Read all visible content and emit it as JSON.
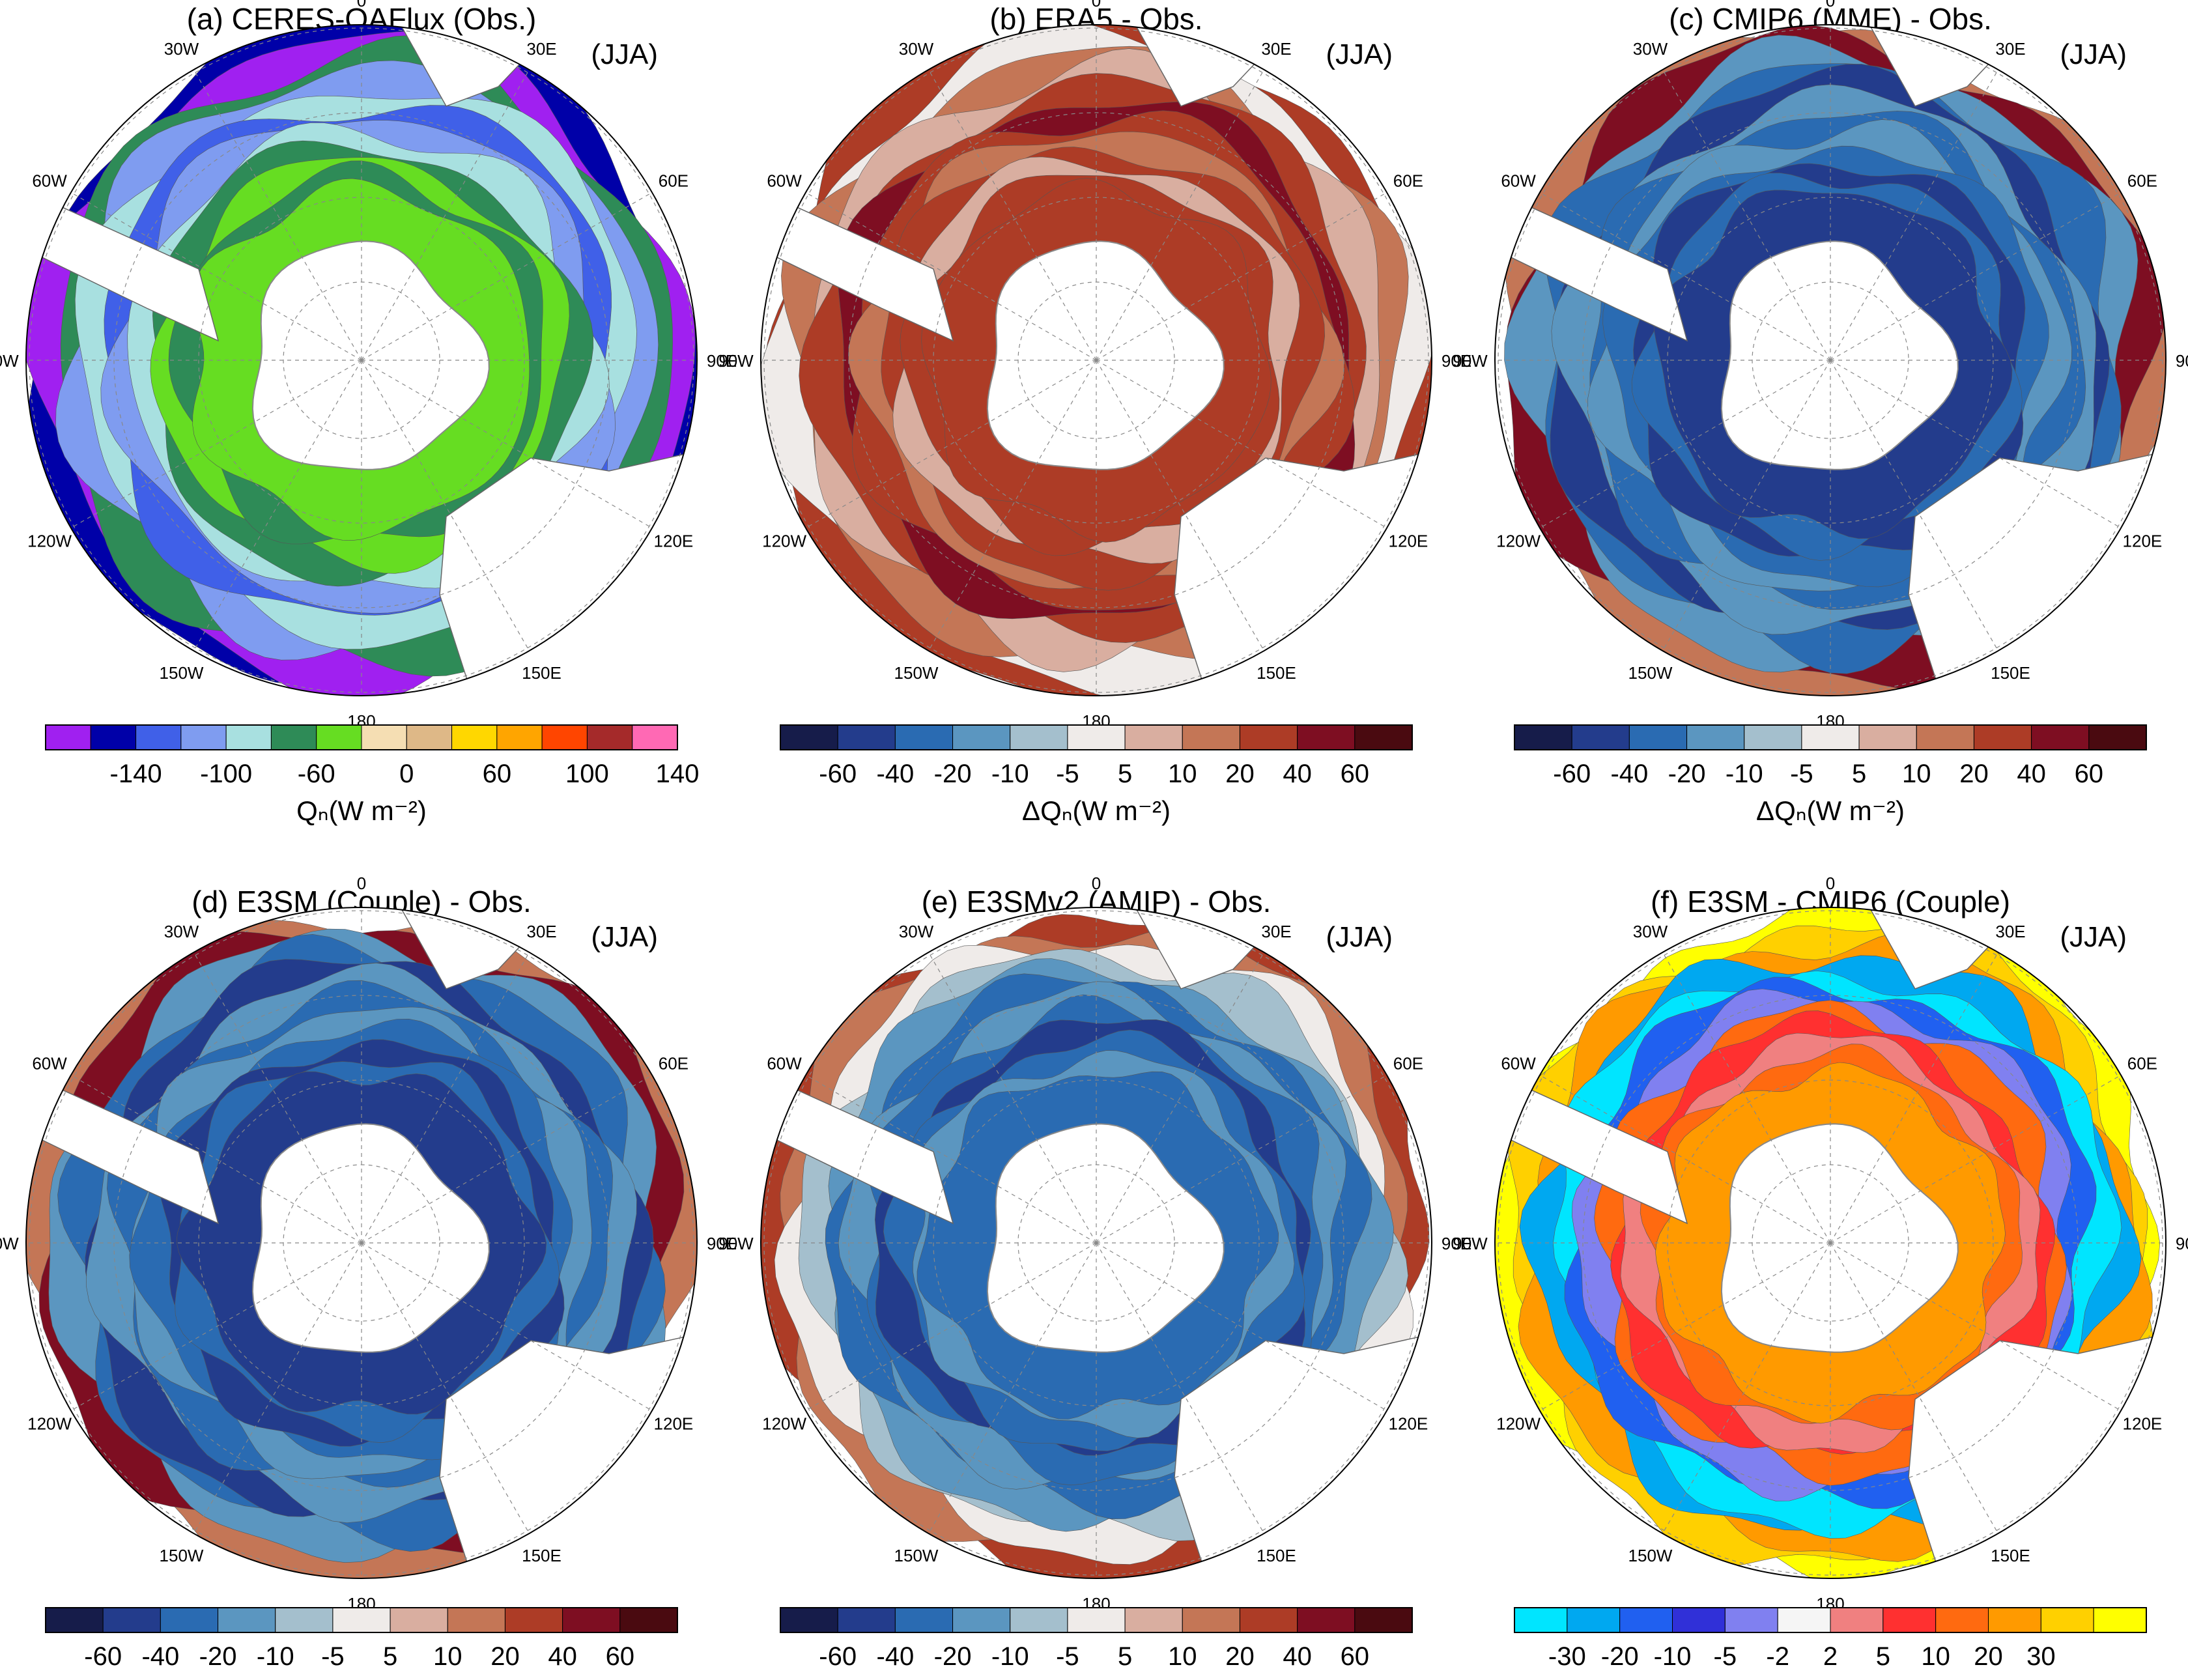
{
  "panels": [
    {
      "id": "a",
      "title": "(a) CERES-OAFlux (Obs.)",
      "season": "(JJA)",
      "units": "Qₙ(W m⁻²)",
      "colorbar_colors": [
        "#a020f0",
        "#0000a8",
        "#4060e8",
        "#7f9cf0",
        "#a8e0e0",
        "#2e8b57",
        "#66dd22",
        "#f5deb3",
        "#deb887",
        "#ffd700",
        "#ffa500",
        "#ff4500",
        "#a52a2a",
        "#ff69b4"
      ],
      "colorbar_labels": [
        "-140",
        "-100",
        "-60",
        "0",
        "60",
        "100",
        "140"
      ],
      "field": "absolute"
    },
    {
      "id": "b",
      "title": "(b) ERA5 - Obs.",
      "season": "(JJA)",
      "units": "ΔQₙ(W m⁻²)",
      "colorbar_colors": [
        "#161c4a",
        "#233c8c",
        "#2a6bb2",
        "#5b96c0",
        "#a4bfcd",
        "#efebe9",
        "#d9aea0",
        "#c47656",
        "#ad3c26",
        "#7e0e22",
        "#4a0a10"
      ],
      "colorbar_labels": [
        "-60",
        "-40",
        "-20",
        "-10",
        "-5",
        "5",
        "10",
        "20",
        "40",
        "60"
      ],
      "field": "warm"
    },
    {
      "id": "c",
      "title": "(c) CMIP6 (MME) - Obs.",
      "season": "(JJA)",
      "units": "ΔQₙ(W m⁻²)",
      "colorbar_colors": [
        "#161c4a",
        "#233c8c",
        "#2a6bb2",
        "#5b96c0",
        "#a4bfcd",
        "#efebe9",
        "#d9aea0",
        "#c47656",
        "#ad3c26",
        "#7e0e22",
        "#4a0a10"
      ],
      "colorbar_labels": [
        "-60",
        "-40",
        "-20",
        "-10",
        "-5",
        "5",
        "10",
        "20",
        "40",
        "60"
      ],
      "field": "cool"
    },
    {
      "id": "d",
      "title": "(d) E3SM (Couple) - Obs.",
      "season": "(JJA)",
      "units": "ΔQₙ(W m⁻²)",
      "colorbar_colors": [
        "#161c4a",
        "#233c8c",
        "#2a6bb2",
        "#5b96c0",
        "#a4bfcd",
        "#efebe9",
        "#d9aea0",
        "#c47656",
        "#ad3c26",
        "#7e0e22",
        "#4a0a10"
      ],
      "colorbar_labels": [
        "-60",
        "-40",
        "-20",
        "-10",
        "-5",
        "5",
        "10",
        "20",
        "40",
        "60"
      ],
      "field": "cool"
    },
    {
      "id": "e",
      "title": "(e) E3SMv2 (AMIP) - Obs.",
      "season": "(JJA)",
      "units": "ΔQₙ(W m⁻²)",
      "colorbar_colors": [
        "#161c4a",
        "#233c8c",
        "#2a6bb2",
        "#5b96c0",
        "#a4bfcd",
        "#efebe9",
        "#d9aea0",
        "#c47656",
        "#ad3c26",
        "#7e0e22",
        "#4a0a10"
      ],
      "colorbar_labels": [
        "-60",
        "-40",
        "-20",
        "-10",
        "-5",
        "5",
        "10",
        "20",
        "40",
        "60"
      ],
      "field": "cool2"
    },
    {
      "id": "f",
      "title": "(f) E3SM - CMIP6 (Couple)",
      "season": "(JJA)",
      "units": "ΔQₙ(W m⁻²)",
      "colorbar_colors": [
        "#00e5ff",
        "#00a8f0",
        "#2060f0",
        "#3030d8",
        "#8080f0",
        "#f5f5f5",
        "#f08080",
        "#ff3030",
        "#ff6a10",
        "#ff9a00",
        "#ffd000",
        "#ffff00"
      ],
      "colorbar_labels": [
        "-30",
        "-20",
        "-10",
        "-5",
        "-2",
        "2",
        "5",
        "10",
        "20",
        "30"
      ],
      "field": "bright"
    }
  ],
  "lon_labels": {
    "top": "0",
    "ne1": "30E",
    "ne2": "60E",
    "e": "90E",
    "se1": "120E",
    "se2": "150E",
    "bottom": "180",
    "sw2": "150W",
    "sw1": "120W",
    "w": "90W",
    "nw2": "60W",
    "nw1": "30W"
  }
}
